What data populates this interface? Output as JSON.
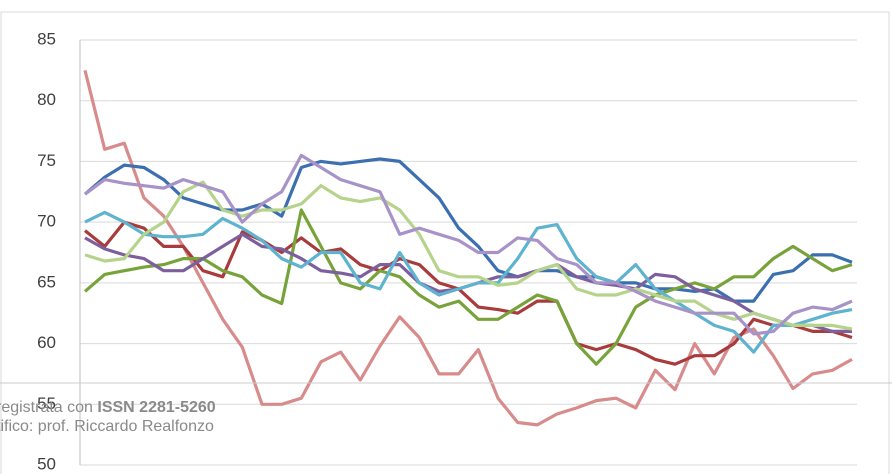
{
  "chart_data": {
    "type": "line",
    "ylim": [
      50,
      85
    ],
    "yticks": [
      50,
      55,
      60,
      65,
      70,
      75,
      80,
      85
    ],
    "grid": true,
    "series": [
      {
        "color": "#d88b8b",
        "values": [
          82.5,
          76,
          76.5,
          72,
          70.5,
          68,
          65,
          62,
          59.7,
          55,
          55,
          55.5,
          58.5,
          59.3,
          57,
          59.8,
          62.2,
          60.5,
          57.5,
          57.5,
          59.5,
          55.5,
          53.5,
          53.3,
          54.2,
          54.7,
          55.3,
          55.5,
          54.7,
          57.8,
          56.2,
          60,
          57.5,
          60.5,
          61.2,
          59,
          56.3,
          57.5,
          57.8,
          58.7
        ]
      },
      {
        "color": "#3b6fb0",
        "values": [
          72.3,
          73.7,
          74.7,
          74.5,
          73.5,
          72,
          71.5,
          71,
          71,
          71.5,
          70.5,
          74.5,
          75,
          74.8,
          75,
          75.2,
          75,
          73.5,
          72,
          69.5,
          68,
          66,
          65.5,
          66,
          66,
          65.5,
          65.5,
          65,
          65,
          64.5,
          64.5,
          64.3,
          64.5,
          63.5,
          63.5,
          65.7,
          66,
          67.3,
          67.3,
          66.7
        ]
      },
      {
        "color": "#a83c3c",
        "values": [
          69.3,
          68,
          70,
          69.5,
          68,
          68,
          66,
          65.5,
          69.2,
          68.5,
          67.5,
          68.7,
          67.5,
          67.8,
          66.5,
          66,
          67,
          66.5,
          65,
          64.5,
          63,
          62.8,
          62.5,
          63.5,
          63.5,
          60,
          59.5,
          60,
          59.5,
          58.7,
          58.3,
          59,
          59,
          60,
          62,
          61.5,
          61.5,
          61,
          61,
          60.5
        ]
      },
      {
        "color": "#78a33b",
        "values": [
          64.3,
          65.7,
          66,
          66.3,
          66.5,
          67,
          67,
          66,
          65.5,
          64,
          63.3,
          71,
          68,
          65,
          64.5,
          66,
          65.5,
          64,
          63,
          63.5,
          62,
          62,
          63,
          64,
          63.5,
          60,
          58.3,
          60,
          63,
          64,
          64.5,
          65,
          64.5,
          65.5,
          65.5,
          67,
          68,
          67,
          66,
          66.5
        ]
      },
      {
        "color": "#7d5f9e",
        "values": [
          68.7,
          67.8,
          67.3,
          67,
          66,
          66,
          67,
          68,
          69,
          68,
          67.8,
          67,
          66,
          65.8,
          65.5,
          66.5,
          66.5,
          65,
          64.3,
          64.5,
          65,
          65.5,
          65.5,
          66,
          66.5,
          65.5,
          65,
          64.8,
          64.5,
          65.7,
          65.5,
          64.5,
          64,
          63.5,
          62.5,
          62,
          61.5,
          61.5,
          61,
          61
        ]
      },
      {
        "color": "#5eb3cf",
        "values": [
          70,
          70.8,
          70,
          69,
          68.8,
          68.8,
          69,
          70.3,
          69.5,
          68.5,
          67,
          66.3,
          67.5,
          67.5,
          65,
          64.5,
          67.5,
          65,
          64,
          64.5,
          65,
          65,
          67,
          69.5,
          69.8,
          67,
          65.5,
          65,
          66.5,
          64.5,
          63.5,
          62.5,
          61.5,
          61,
          59.3,
          61.5,
          61.5,
          62,
          62.5,
          62.8
        ]
      },
      {
        "color": "#b6d38c",
        "values": [
          67.3,
          66.8,
          67,
          69,
          70,
          72.5,
          73.3,
          71,
          70.5,
          71,
          71,
          71.5,
          73,
          72,
          71.7,
          72,
          71,
          69,
          66,
          65.5,
          65.5,
          64.8,
          65,
          66,
          66.5,
          64.5,
          64,
          64,
          64.5,
          64,
          63.5,
          63.5,
          62.5,
          62,
          62.5,
          62,
          61.5,
          61.5,
          61.5,
          61.2
        ]
      },
      {
        "color": "#a893c9",
        "values": [
          72.3,
          73.5,
          73.2,
          73,
          72.8,
          73.5,
          73,
          72.5,
          70,
          71.5,
          72.5,
          75.5,
          74.5,
          73.5,
          73,
          72.5,
          69,
          69.5,
          69,
          68.5,
          67.5,
          67.5,
          68.7,
          68.5,
          67,
          66.5,
          65,
          65,
          64.3,
          63.5,
          63,
          62.5,
          62.5,
          62.5,
          60.8,
          61,
          62.5,
          63,
          62.8,
          63.5
        ]
      }
    ]
  },
  "overlay": {
    "line1": [
      "registrata con ",
      "ISSN 2281-5260"
    ],
    "line2": "tifico: prof. Riccardo Realfonzo"
  }
}
